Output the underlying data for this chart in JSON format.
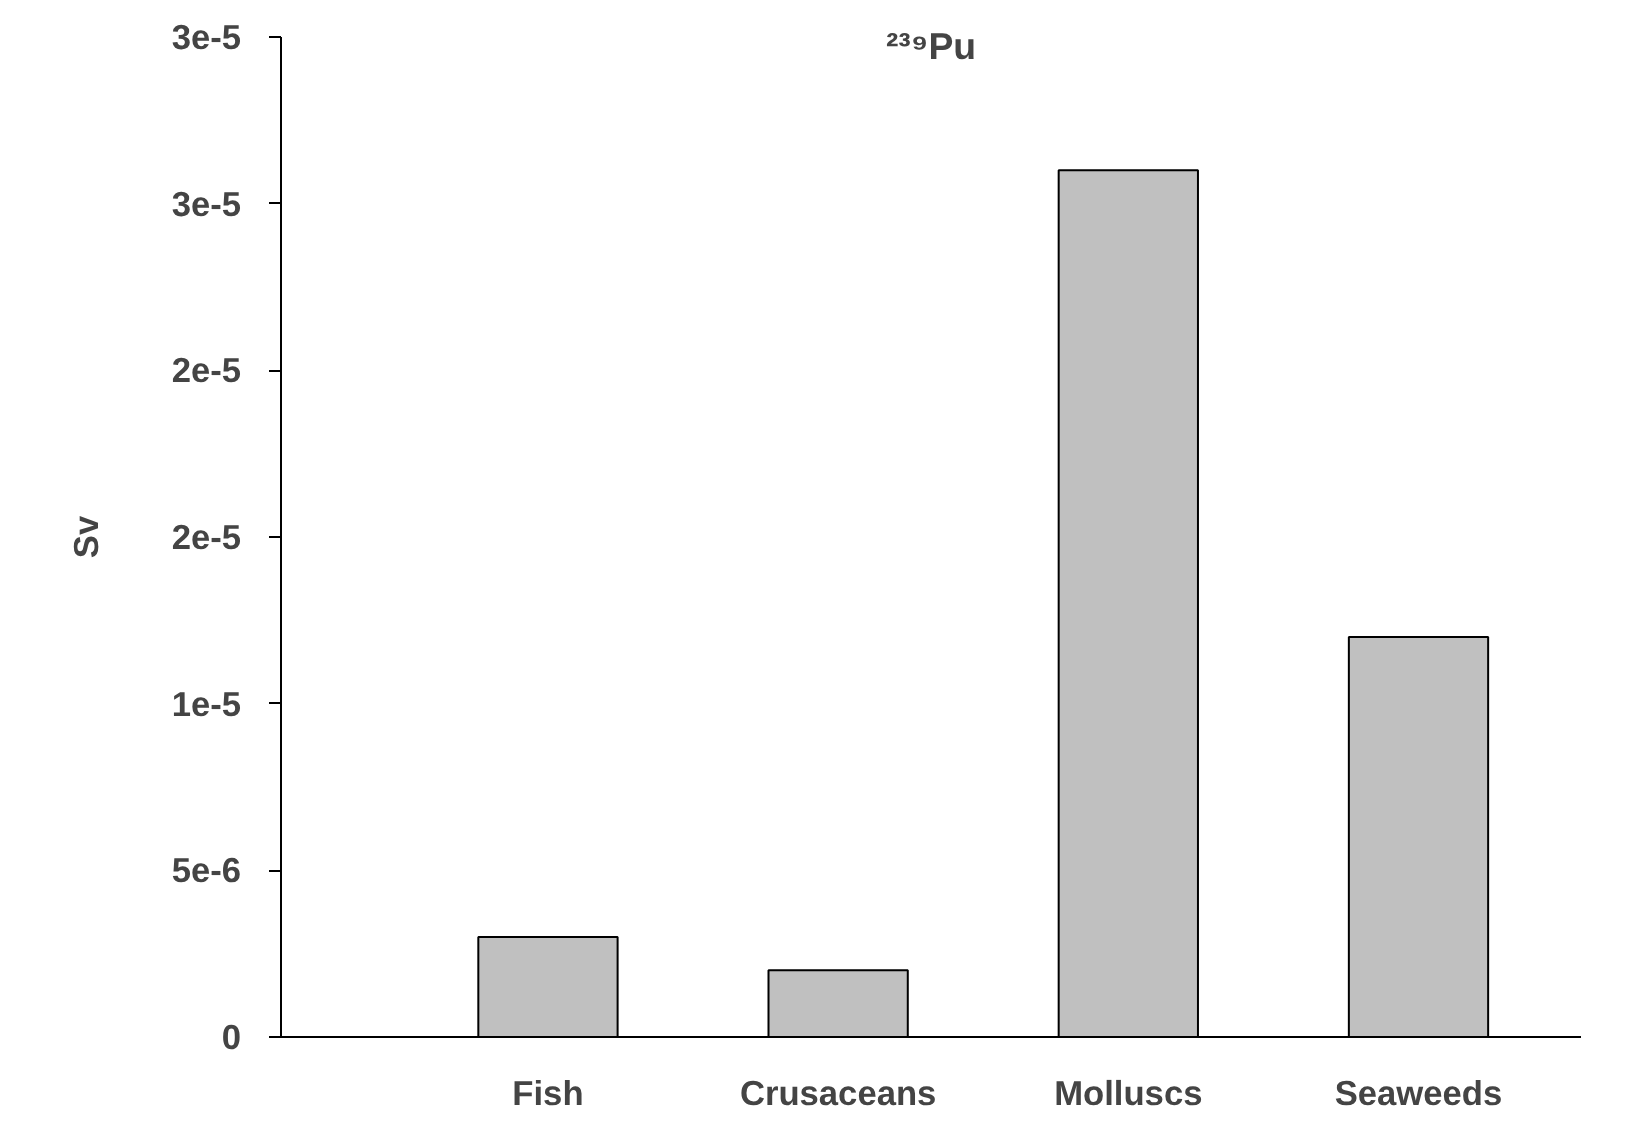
{
  "chart_data": {
    "type": "bar",
    "title": "²³⁹Pu",
    "ylabel": "Sv",
    "categories": [
      "Fish",
      "Crusaceans",
      "Molluscs",
      "Seaweeds"
    ],
    "values": [
      3e-06,
      2e-06,
      2.6e-05,
      1.2e-05
    ],
    "color": "#c0c0c0",
    "ylim": [
      0,
      3e-05
    ],
    "yticks": [
      0,
      {
        "value": 5e-06,
        "label": "5e-6"
      },
      {
        "value": 1e-05,
        "label": "1e-5"
      },
      {
        "value": 1.5e-05,
        "label": "2e-5"
      },
      {
        "value": 2e-05,
        "label": "2e-5"
      },
      {
        "value": 2.5e-05,
        "label": "3e-5"
      },
      {
        "value": 3e-05,
        "label": "3e-5"
      }
    ],
    "grid": false
  }
}
